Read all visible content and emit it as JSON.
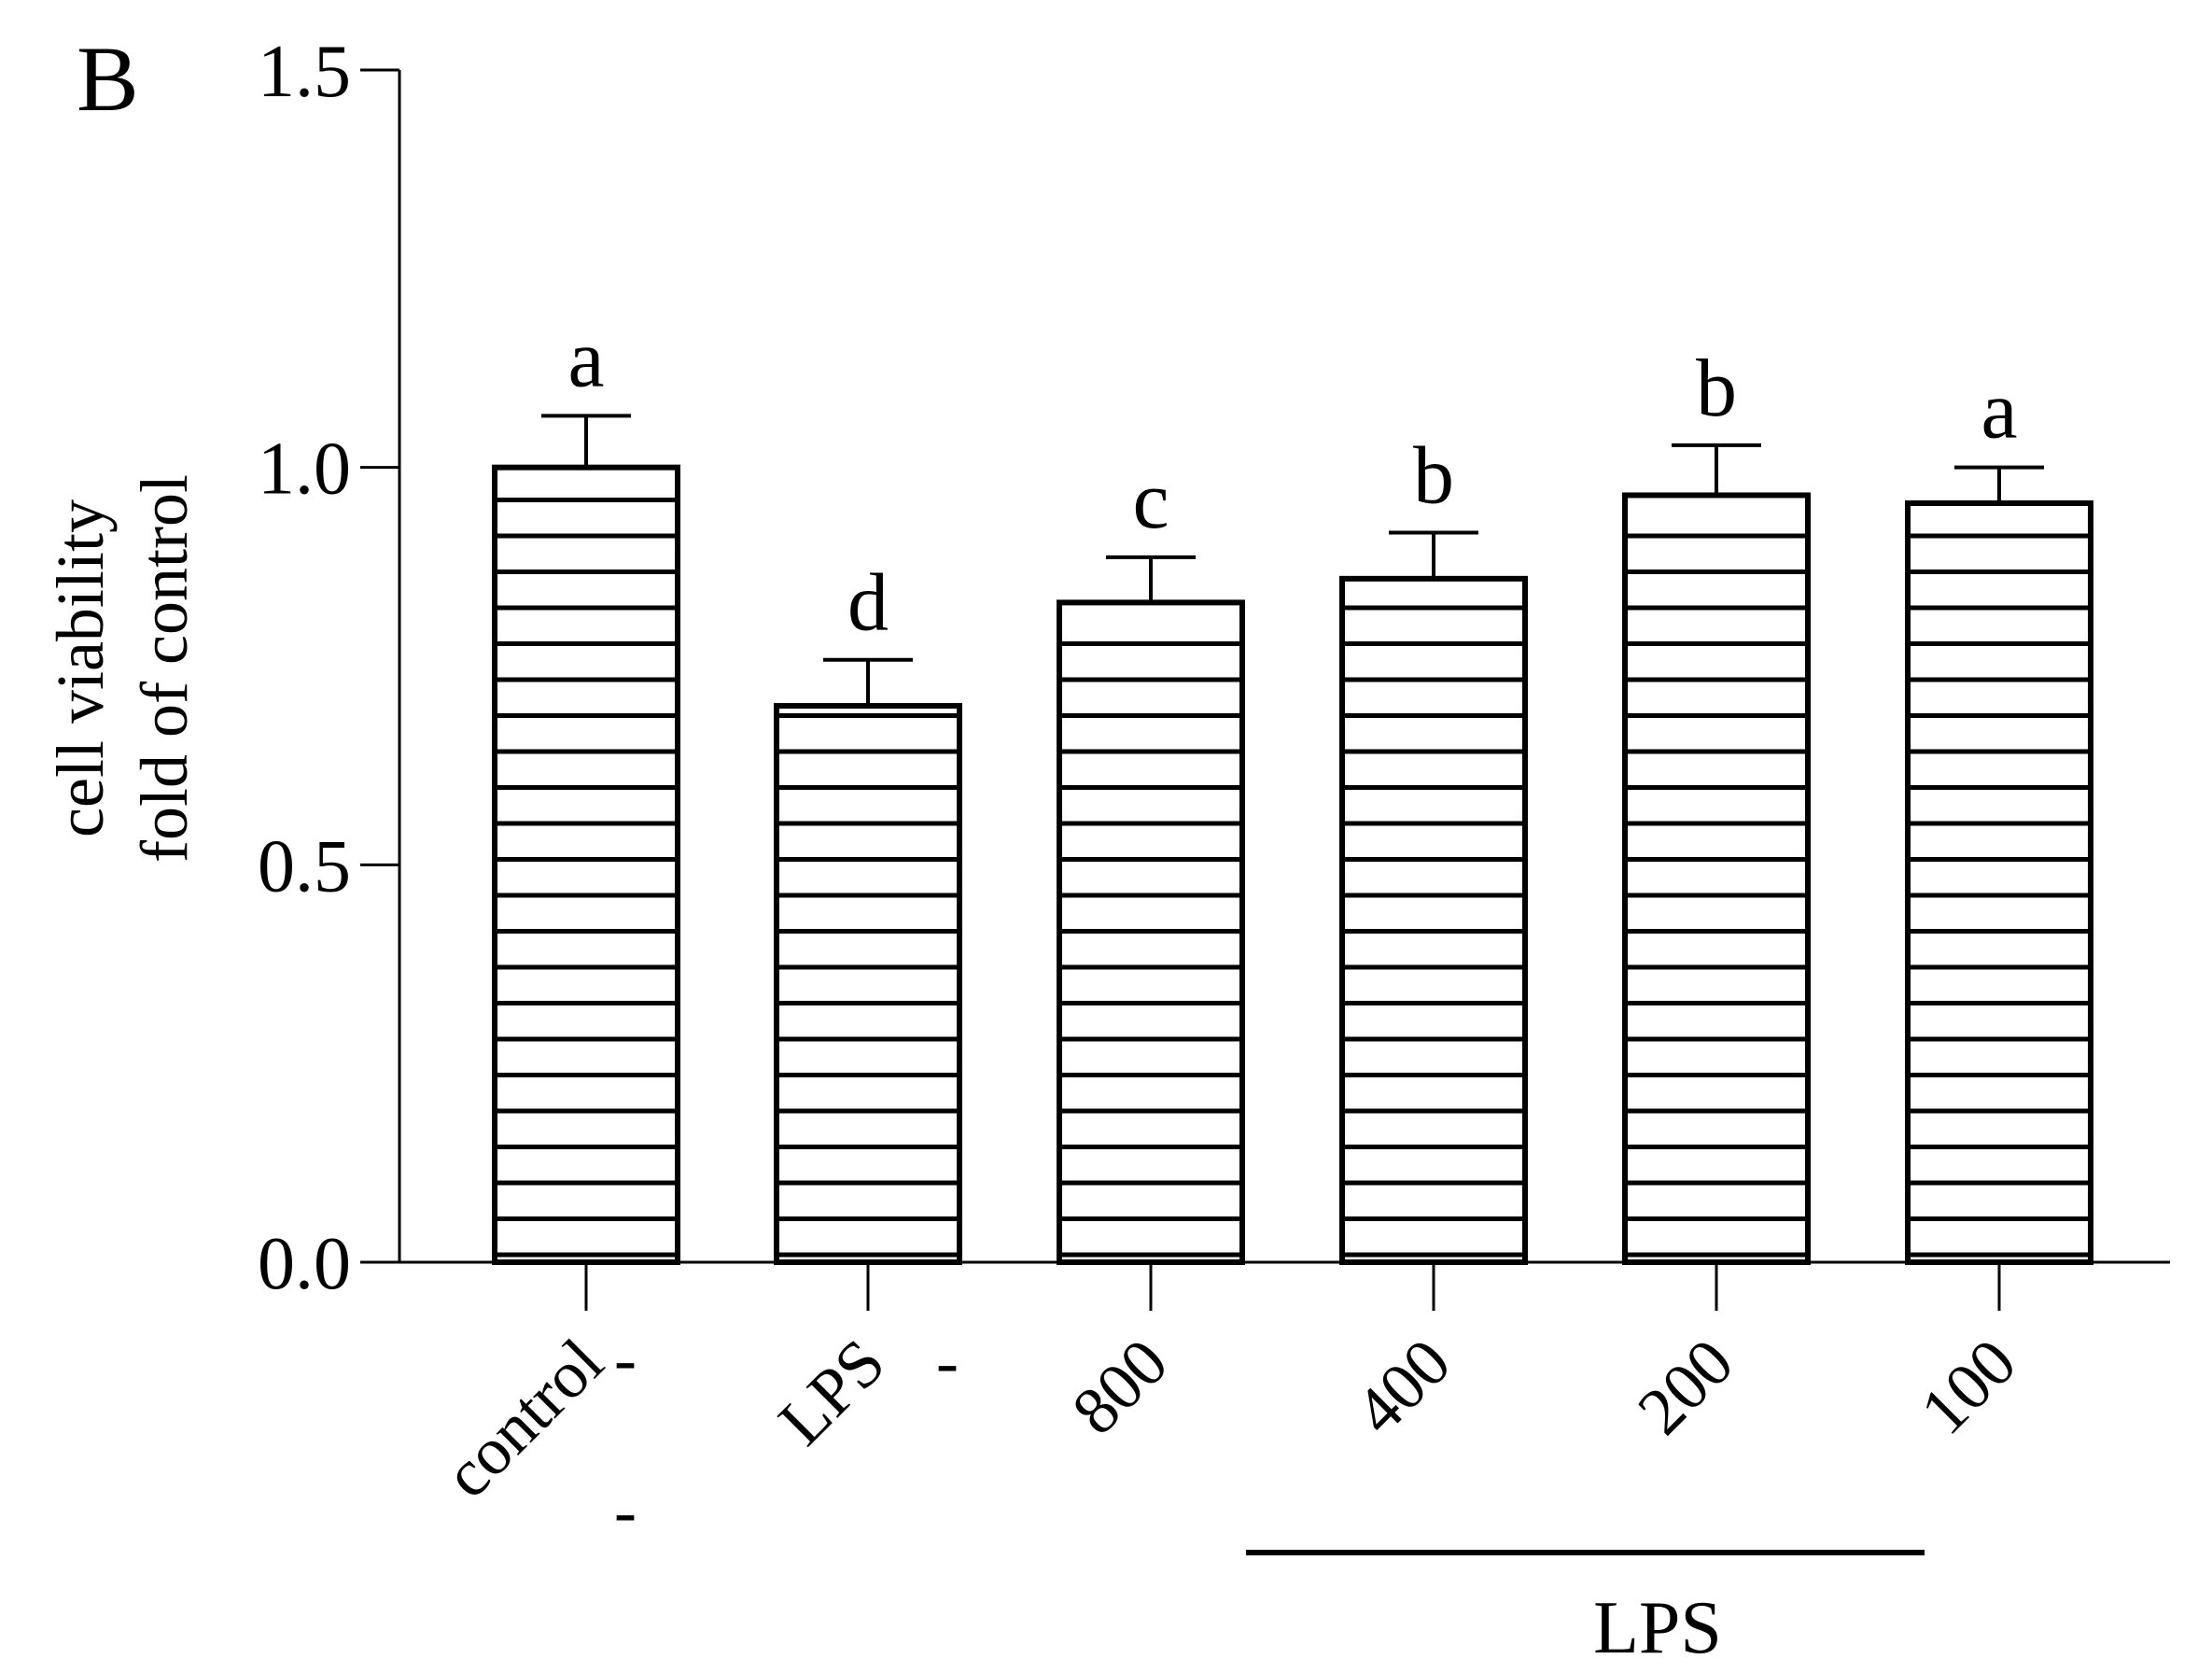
{
  "panel_label": "B",
  "chart_data": {
    "type": "bar",
    "title": "",
    "ylabel_lines": [
      "cell viability",
      "fold of control"
    ],
    "xlabel": "",
    "ylim": [
      0,
      1.5
    ],
    "yticks": [
      0,
      0.5,
      1,
      1.5
    ],
    "ytick_labels": [
      "0.0",
      "0.5",
      "1.0",
      "1.5"
    ],
    "categories": [
      "control",
      "LPS",
      "800",
      "400",
      "200",
      "100"
    ],
    "values": [
      1.0,
      0.7,
      0.83,
      0.86,
      0.965,
      0.955
    ],
    "errors": [
      0.065,
      0.058,
      0.057,
      0.058,
      0.063,
      0.045
    ],
    "significance": [
      "a",
      "d",
      "c",
      "b",
      "b",
      "a"
    ],
    "group_label": "LPS",
    "group_categories": [
      "800",
      "400",
      "200",
      "100"
    ],
    "minus_marks": [
      "-",
      "-",
      "-"
    ],
    "bar_fill": "horizontal-stripes",
    "grid": false,
    "legend": "none"
  }
}
